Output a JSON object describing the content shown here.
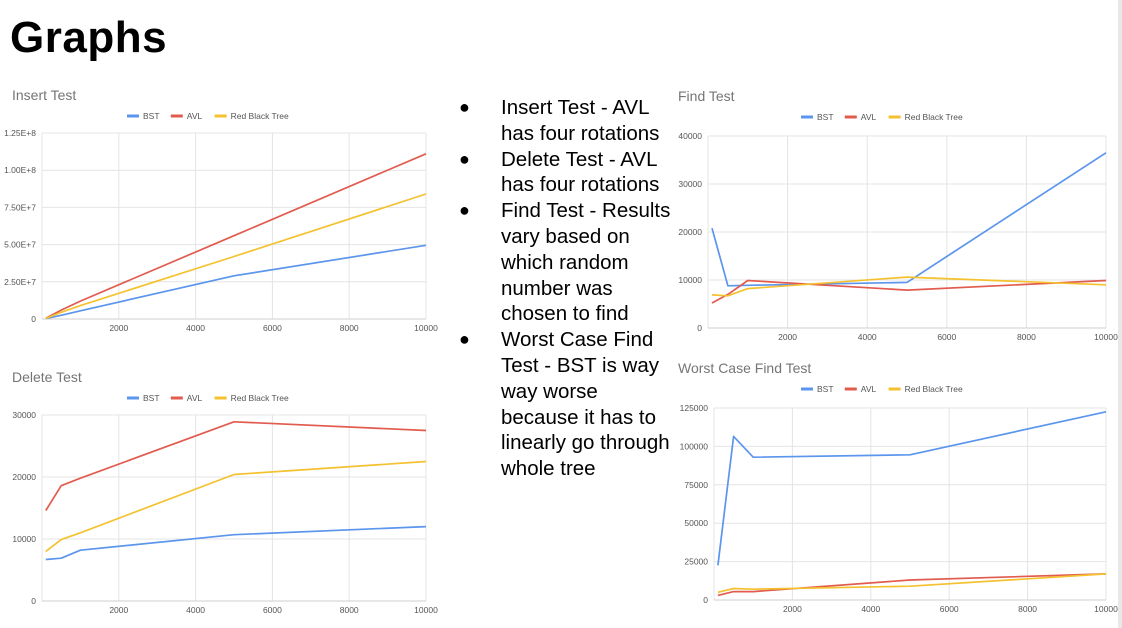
{
  "page": {
    "title": "Graphs"
  },
  "notes": [
    "Insert Test - AVL has four rotations",
    "Delete Test - AVL has four rotations",
    "Find Test - Results vary based on which random number was chosen to find",
    "Worst Case Find Test - BST is way way worse because it has to linearly go through whole tree"
  ],
  "colors": {
    "BST": "#5b95ec",
    "AVL": "#e15b4e",
    "Red Black Tree": "#f4c12f",
    "grid": "#e4e4e4"
  },
  "chart_data": [
    {
      "id": "insert",
      "type": "line",
      "title": "Insert Test",
      "xlabel": "",
      "ylabel": "",
      "xlim": [
        0,
        10000
      ],
      "ylim": [
        0,
        125000000
      ],
      "xticks": [
        2000,
        4000,
        6000,
        8000,
        10000
      ],
      "xtick_labels": [
        "2000",
        "4000",
        "6000",
        "8000",
        "10000"
      ],
      "yticks": [
        0,
        25000000,
        50000000,
        75000000,
        100000000,
        125000000
      ],
      "ytick_labels": [
        "0",
        "2.50E+7",
        "5.00E+7",
        "7.50E+7",
        "1.00E+8",
        "1.25E+8"
      ],
      "legend": "top-center",
      "grid": true,
      "series": [
        {
          "name": "BST",
          "points": [
            [
              100,
              300000
            ],
            [
              500,
              2500000
            ],
            [
              1000,
              5500000
            ],
            [
              5000,
              29000000
            ],
            [
              10000,
              49500000
            ]
          ]
        },
        {
          "name": "AVL",
          "points": [
            [
              100,
              500000
            ],
            [
              500,
              6000000
            ],
            [
              1000,
              12000000
            ],
            [
              5000,
              56000000
            ],
            [
              10000,
              111000000
            ]
          ]
        },
        {
          "name": "Red Black Tree",
          "points": [
            [
              100,
              400000
            ],
            [
              500,
              4500000
            ],
            [
              1000,
              9000000
            ],
            [
              5000,
              42000000
            ],
            [
              10000,
              84000000
            ]
          ]
        }
      ]
    },
    {
      "id": "delete",
      "type": "line",
      "title": "Delete Test",
      "xlabel": "",
      "ylabel": "",
      "xlim": [
        0,
        10000
      ],
      "ylim": [
        0,
        30000
      ],
      "xticks": [
        2000,
        4000,
        6000,
        8000,
        10000
      ],
      "xtick_labels": [
        "2000",
        "4000",
        "6000",
        "8000",
        "10000"
      ],
      "yticks": [
        0,
        10000,
        20000,
        30000
      ],
      "ytick_labels": [
        "0",
        "10000",
        "20000",
        "30000"
      ],
      "legend": "top-center",
      "grid": true,
      "series": [
        {
          "name": "BST",
          "points": [
            [
              100,
              6700
            ],
            [
              500,
              6900
            ],
            [
              1000,
              8200
            ],
            [
              5000,
              10700
            ],
            [
              10000,
              12000
            ]
          ]
        },
        {
          "name": "AVL",
          "points": [
            [
              100,
              14600
            ],
            [
              500,
              18600
            ],
            [
              1000,
              19800
            ],
            [
              5000,
              28900
            ],
            [
              10000,
              27500
            ]
          ]
        },
        {
          "name": "Red Black Tree",
          "points": [
            [
              100,
              8000
            ],
            [
              500,
              9900
            ],
            [
              1000,
              11000
            ],
            [
              5000,
              20400
            ],
            [
              10000,
              22500
            ]
          ]
        }
      ]
    },
    {
      "id": "find",
      "type": "line",
      "title": "Find Test",
      "xlabel": "",
      "ylabel": "",
      "xlim": [
        0,
        10000
      ],
      "ylim": [
        0,
        40000
      ],
      "xticks": [
        2000,
        4000,
        6000,
        8000,
        10000
      ],
      "xtick_labels": [
        "2000",
        "4000",
        "6000",
        "8000",
        "10000"
      ],
      "yticks": [
        0,
        10000,
        20000,
        30000,
        40000
      ],
      "ytick_labels": [
        "0",
        "10000",
        "20000",
        "30000",
        "40000"
      ],
      "legend": "top-center",
      "grid": true,
      "series": [
        {
          "name": "BST",
          "points": [
            [
              100,
              20800
            ],
            [
              500,
              8800
            ],
            [
              1000,
              8900
            ],
            [
              5000,
              9500
            ],
            [
              10000,
              36500
            ]
          ]
        },
        {
          "name": "AVL",
          "points": [
            [
              100,
              5200
            ],
            [
              500,
              7000
            ],
            [
              1000,
              9900
            ],
            [
              5000,
              7900
            ],
            [
              10000,
              9900
            ]
          ]
        },
        {
          "name": "Red Black Tree",
          "points": [
            [
              100,
              6900
            ],
            [
              500,
              6700
            ],
            [
              1000,
              8200
            ],
            [
              5000,
              10600
            ],
            [
              10000,
              9000
            ]
          ]
        }
      ]
    },
    {
      "id": "worst",
      "type": "line",
      "title": "Worst Case Find Test",
      "xlabel": "",
      "ylabel": "",
      "xlim": [
        0,
        10000
      ],
      "ylim": [
        0,
        125000
      ],
      "xticks": [
        2000,
        4000,
        6000,
        8000,
        10000
      ],
      "xtick_labels": [
        "2000",
        "4000",
        "6000",
        "8000",
        "10000"
      ],
      "yticks": [
        0,
        25000,
        50000,
        75000,
        100000,
        125000
      ],
      "ytick_labels": [
        "0",
        "25000",
        "50000",
        "75000",
        "100000",
        "125000"
      ],
      "legend": "top-center",
      "grid": true,
      "series": [
        {
          "name": "BST",
          "points": [
            [
              100,
              22500
            ],
            [
              500,
              106500
            ],
            [
              1000,
              93000
            ],
            [
              5000,
              94500
            ],
            [
              10000,
              122500
            ]
          ]
        },
        {
          "name": "AVL",
          "points": [
            [
              100,
              3000
            ],
            [
              500,
              5500
            ],
            [
              1000,
              5500
            ],
            [
              5000,
              13000
            ],
            [
              10000,
              17000
            ]
          ]
        },
        {
          "name": "Red Black Tree",
          "points": [
            [
              100,
              5000
            ],
            [
              500,
              7500
            ],
            [
              1000,
              7000
            ],
            [
              5000,
              9000
            ],
            [
              10000,
              17000
            ]
          ]
        }
      ]
    }
  ]
}
